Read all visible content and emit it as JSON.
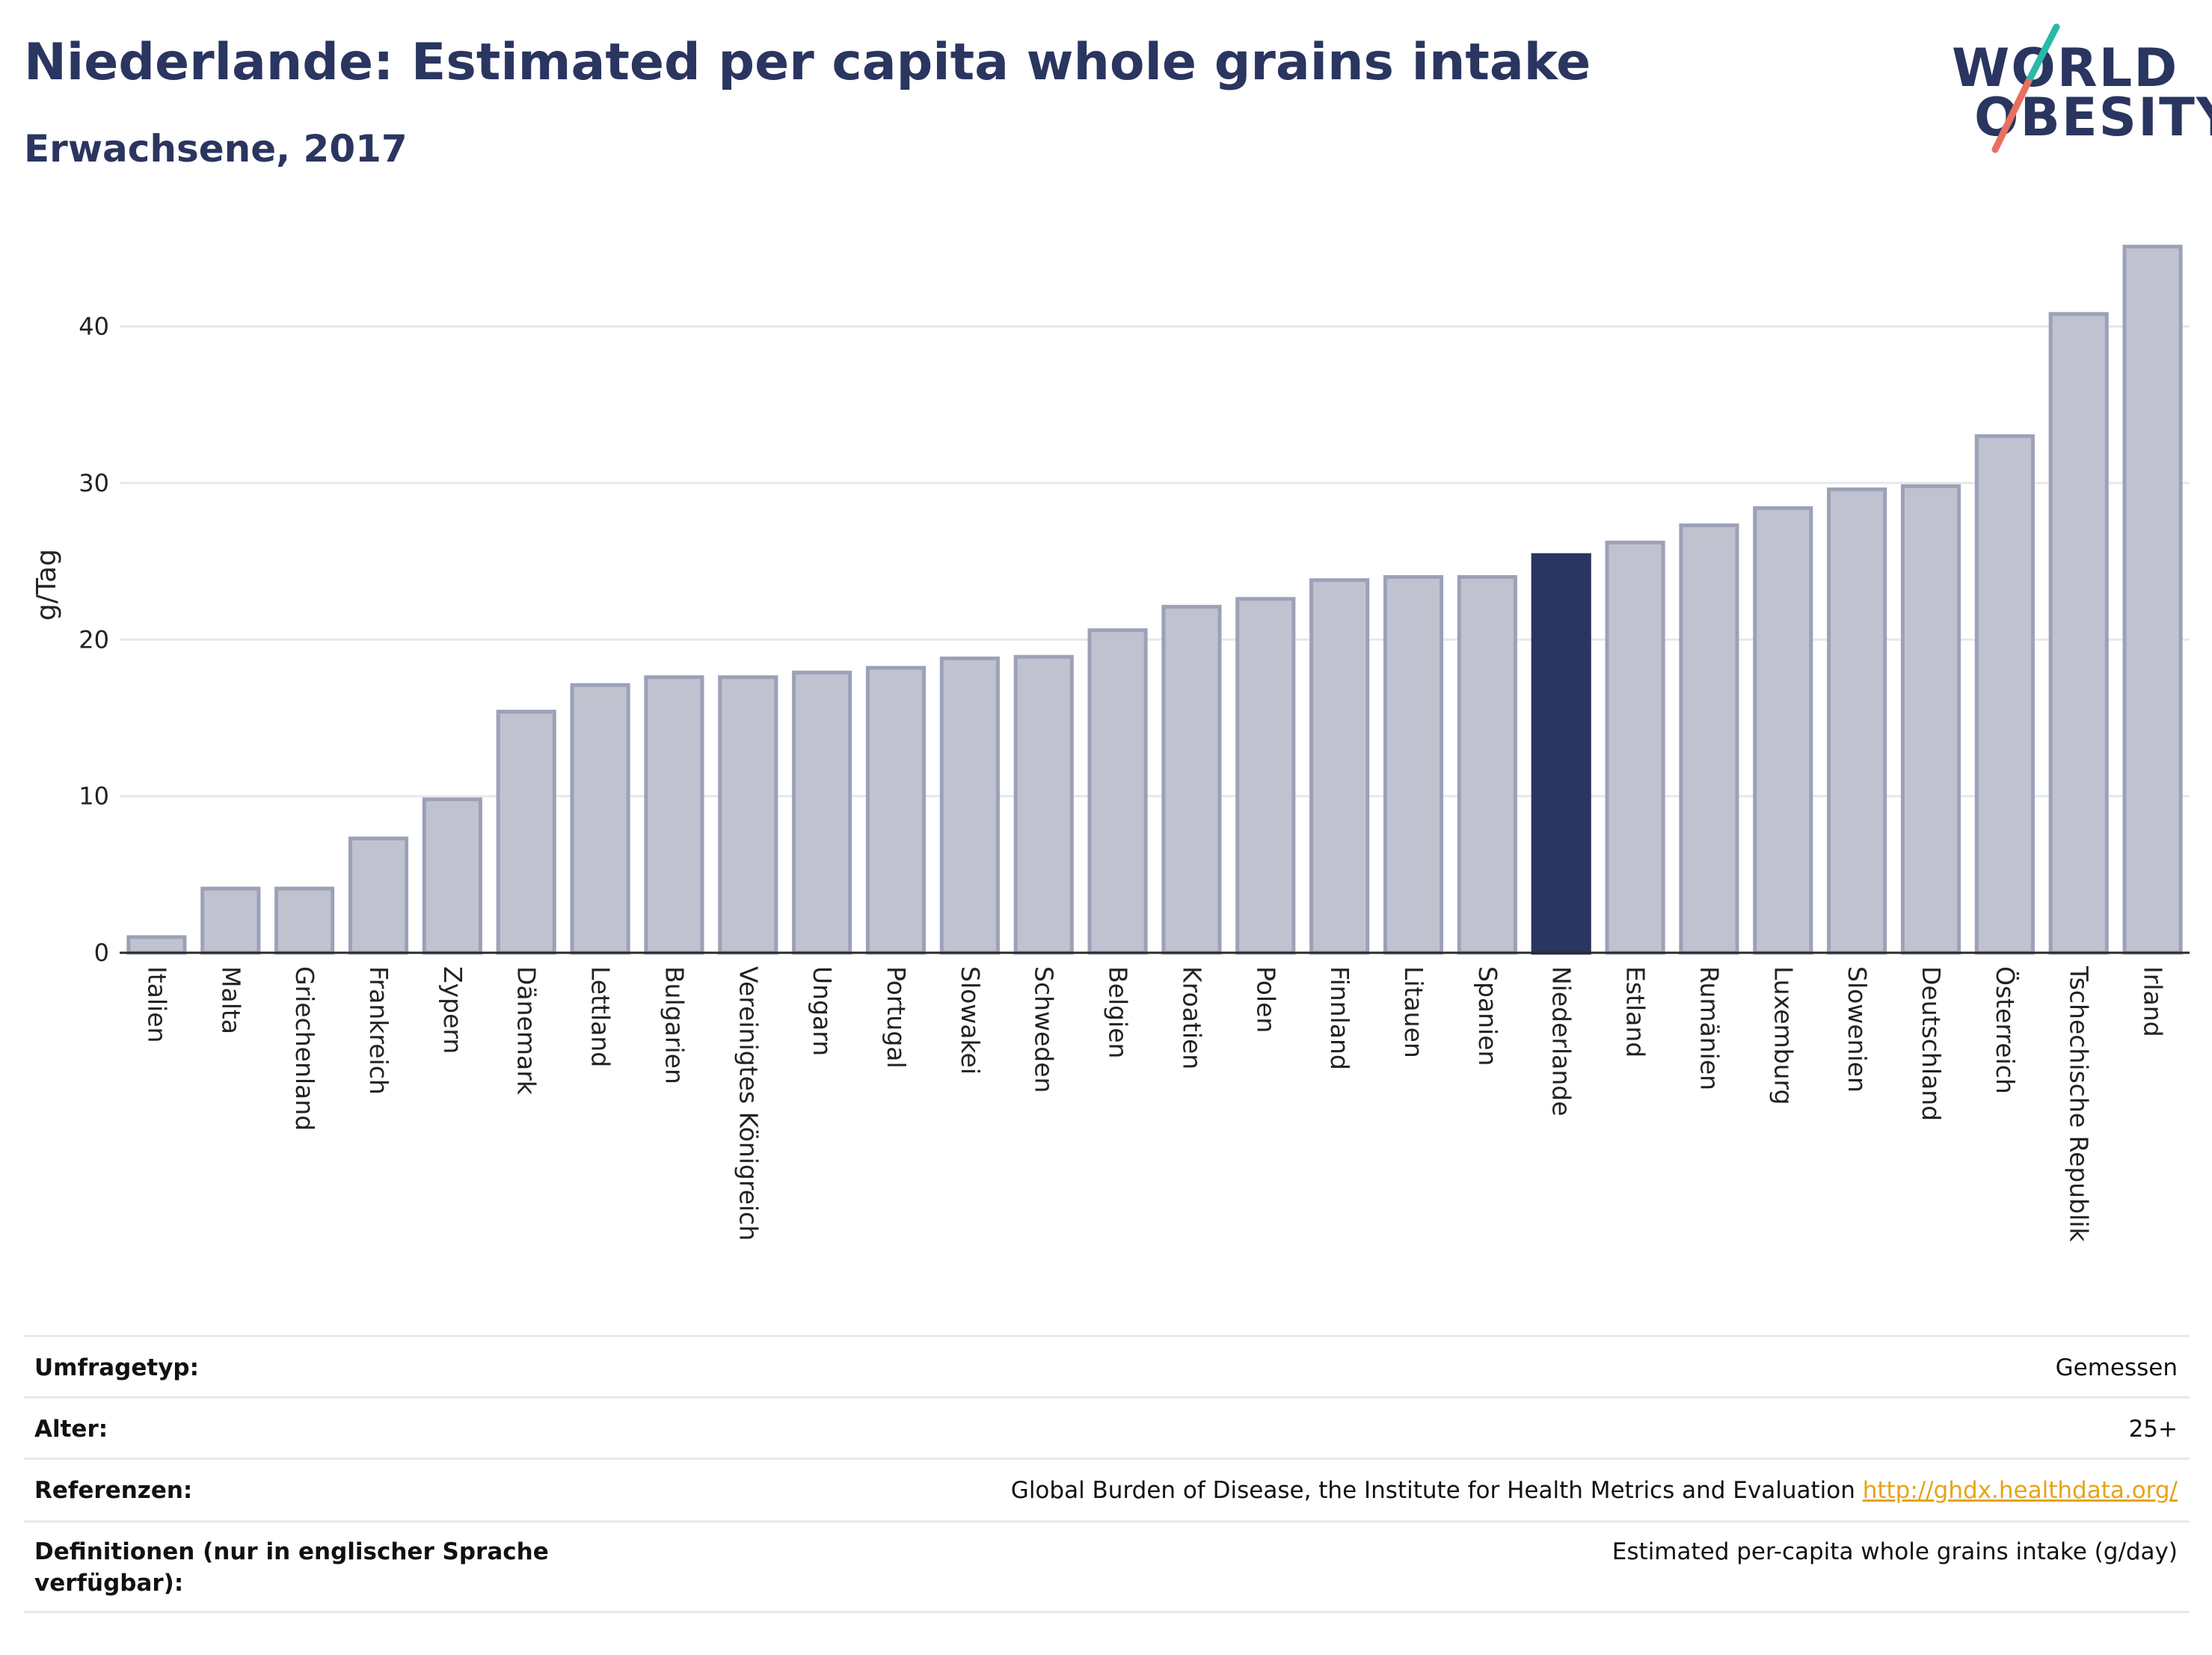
{
  "header": {
    "title": "Niederlande: Estimated per capita whole grains intake",
    "subtitle": "Erwachsene, 2017"
  },
  "logo": {
    "line1": "WORLD",
    "line2": "OBESITY",
    "colors": {
      "text": "#2a3560",
      "slash_top": "#2bb9a8",
      "slash_bottom": "#e8705f"
    }
  },
  "chart_data": {
    "type": "bar",
    "ylabel": "g/Tag",
    "xlabel": "",
    "ylim": [
      0,
      47
    ],
    "yticks": [
      0,
      10,
      20,
      30,
      40
    ],
    "grid": true,
    "highlight": "Niederlande",
    "colors": {
      "bar": "#c0c3cf",
      "bar_border": "#9ca1b8",
      "highlight": "#2a3560"
    },
    "categories": [
      "Italien",
      "Malta",
      "Griechenland",
      "Frankreich",
      "Zypern",
      "Dänemark",
      "Lettland",
      "Bulgarien",
      "Vereinigtes Königreich",
      "Ungarn",
      "Portugal",
      "Slowakei",
      "Schweden",
      "Belgien",
      "Kroatien",
      "Polen",
      "Finnland",
      "Litauen",
      "Spanien",
      "Niederlande",
      "Estland",
      "Rumänien",
      "Luxemburg",
      "Slowenien",
      "Deutschland",
      "Österreich",
      "Tschechische Republik",
      "Irland"
    ],
    "values": [
      1.0,
      4.1,
      4.1,
      7.3,
      9.8,
      15.4,
      17.1,
      17.6,
      17.6,
      17.9,
      18.2,
      18.8,
      18.9,
      20.6,
      22.1,
      22.6,
      23.8,
      24.0,
      24.0,
      25.4,
      26.2,
      27.3,
      28.4,
      29.6,
      29.8,
      33.0,
      40.8,
      45.1
    ]
  },
  "info": {
    "rows": [
      {
        "label": "Umfragetyp:",
        "value": "Gemessen"
      },
      {
        "label": "Alter:",
        "value": "25+"
      },
      {
        "label": "Referenzen:",
        "value": "Global Burden of Disease, the Institute for Health Metrics and Evaluation",
        "link": "http://ghdx.healthdata.org/"
      },
      {
        "label": "Definitionen (nur in englischer Sprache verfügbar):",
        "value": "Estimated per-capita whole grains intake (g/day)"
      }
    ]
  }
}
